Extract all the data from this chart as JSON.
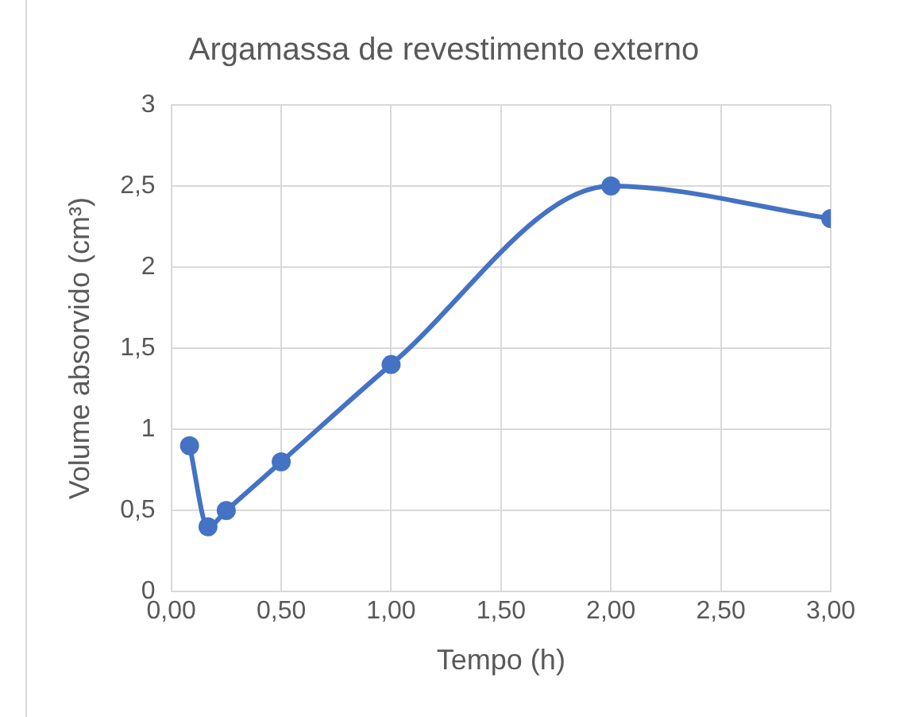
{
  "chart_data": {
    "type": "line",
    "title": "Argamassa de revestimento externo",
    "xlabel": "Tempo (h)",
    "ylabel": "Volume absorvido (cm³)",
    "x": [
      0.083,
      0.167,
      0.25,
      0.5,
      1,
      2,
      3
    ],
    "series": [
      {
        "color": "#4472c4",
        "values": [
          0.9,
          0.4,
          0.5,
          0.8,
          1.4,
          2.5,
          2.3
        ]
      }
    ],
    "xlim": [
      0,
      3
    ],
    "xticks": [
      {
        "value": 0,
        "label": "0,00"
      },
      {
        "value": 0.5,
        "label": "0,50"
      },
      {
        "value": 1,
        "label": "1,00"
      },
      {
        "value": 1.5,
        "label": "1,50"
      },
      {
        "value": 2,
        "label": "2,00"
      },
      {
        "value": 2.5,
        "label": "2,50"
      },
      {
        "value": 3,
        "label": "3,00"
      }
    ],
    "ylim": [
      0,
      3
    ],
    "yticks": [
      0,
      {
        "value": 0.5,
        "label": "0,5"
      },
      1,
      {
        "value": 1.5,
        "label": "1,5"
      },
      2,
      {
        "value": 2.5,
        "label": "2,5"
      },
      3
    ],
    "grid": true,
    "legend": false,
    "marker": "circle",
    "line_style": "solid"
  }
}
